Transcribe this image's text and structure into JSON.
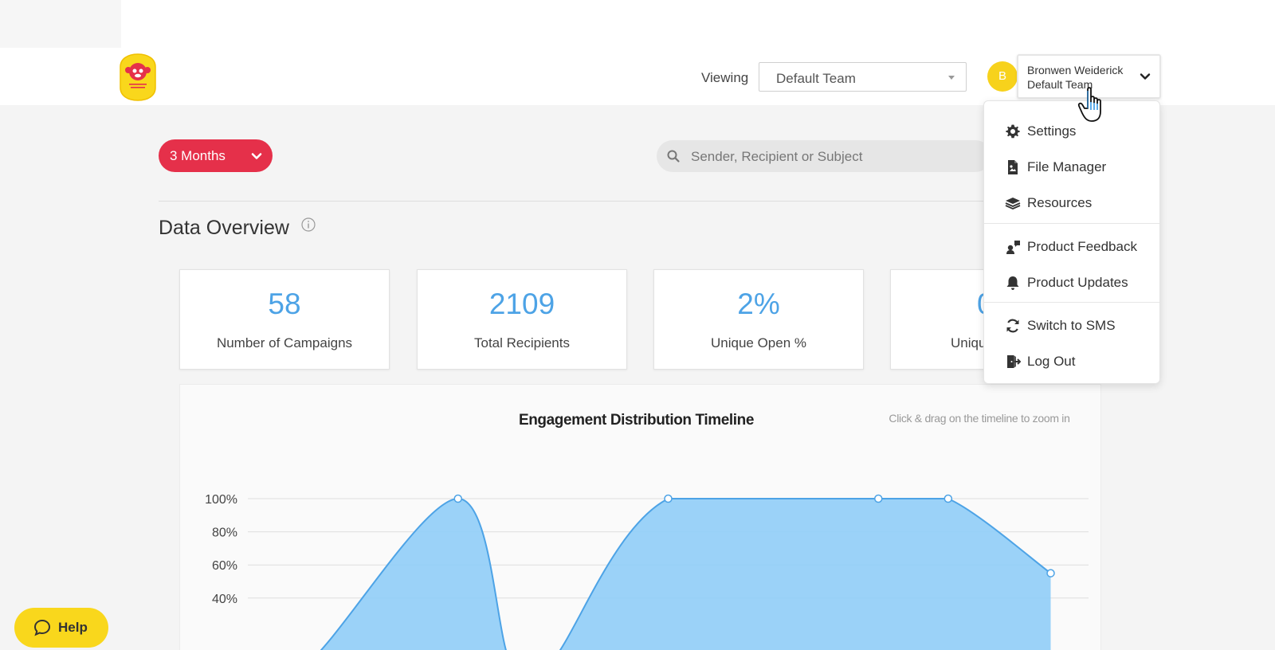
{
  "header": {
    "viewing_label": "Viewing",
    "team_select": {
      "value": "Default Team"
    },
    "user": {
      "avatar_initial": "B",
      "name": "Bronwen Weiderick",
      "team": "Default Team"
    }
  },
  "toolbar": {
    "period_label": "3 Months",
    "search_placeholder": "Sender, Recipient or Subject"
  },
  "overview": {
    "title": "Data Overview",
    "cards": [
      {
        "value": "58",
        "label": "Number of Campaigns"
      },
      {
        "value": "2109",
        "label": "Total Recipients"
      },
      {
        "value": "2%",
        "label": "Unique Open %"
      },
      {
        "value": "0",
        "label": "Uniqu"
      }
    ]
  },
  "user_menu": {
    "items": [
      {
        "label": "Settings",
        "icon": "gear-icon"
      },
      {
        "label": "File Manager",
        "icon": "file-icon"
      },
      {
        "label": "Resources",
        "icon": "layers-icon"
      },
      {
        "label": "Product Feedback",
        "icon": "feedback-icon"
      },
      {
        "label": "Product Updates",
        "icon": "bell-icon"
      },
      {
        "label": "Switch to SMS",
        "icon": "sync-icon"
      },
      {
        "label": "Log Out",
        "icon": "logout-icon"
      }
    ]
  },
  "help": {
    "label": "Help"
  },
  "colors": {
    "accent_red": "#e5304a",
    "brand_yellow": "#f9d71c",
    "chart_fill": "#90cdf7",
    "chart_line": "#4da3e6"
  },
  "chart_data": {
    "type": "area",
    "title": "Engagement Distribution Timeline",
    "hint": "Click & drag on the timeline to zoom in",
    "ylabel": "",
    "y_ticks": [
      "100%",
      "80%",
      "60%",
      "40%"
    ],
    "ylim": [
      0,
      100
    ],
    "grid": true,
    "series": [
      {
        "points": [
          {
            "t": 0.0,
            "v": 0
          },
          {
            "t": 0.07,
            "v": 0
          },
          {
            "t": 0.25,
            "v": 100
          },
          {
            "t": 0.313,
            "v": 0
          },
          {
            "t": 0.359,
            "v": 0
          },
          {
            "t": 0.5,
            "v": 100
          },
          {
            "t": 0.75,
            "v": 100
          },
          {
            "t": 0.833,
            "v": 100
          },
          {
            "t": 0.955,
            "v": 55
          }
        ],
        "markers": [
          2,
          5,
          6,
          7,
          8
        ]
      }
    ]
  }
}
